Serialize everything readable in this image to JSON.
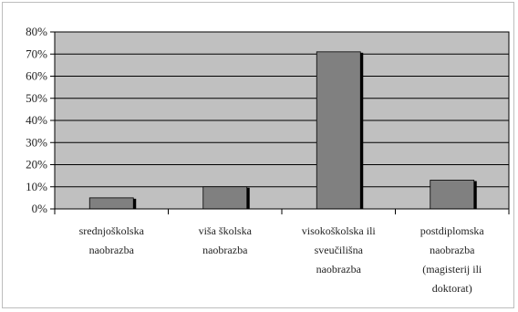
{
  "chart_data": {
    "type": "bar",
    "categories": [
      [
        "srednjoškolska",
        "naobrazba"
      ],
      [
        "viša školska",
        "naobrazba"
      ],
      [
        "visokoškolska ili",
        "sveučilišna",
        "naobrazba"
      ],
      [
        "postdiplomska",
        "naobrazba",
        "(magisterij ili",
        "doktorat)"
      ]
    ],
    "values": [
      5,
      10,
      71,
      13
    ],
    "y_ticks": [
      "0%",
      "10%",
      "20%",
      "30%",
      "40%",
      "50%",
      "60%",
      "70%",
      "80%"
    ],
    "ylim": [
      0,
      80
    ],
    "grid": true,
    "legend": "none",
    "colors": {
      "plot_bg": "#c0c0c0",
      "bar_face": "#808080",
      "bar_shadow": "#000000",
      "grid": "#000000",
      "frame": "#bdbdbd"
    }
  }
}
